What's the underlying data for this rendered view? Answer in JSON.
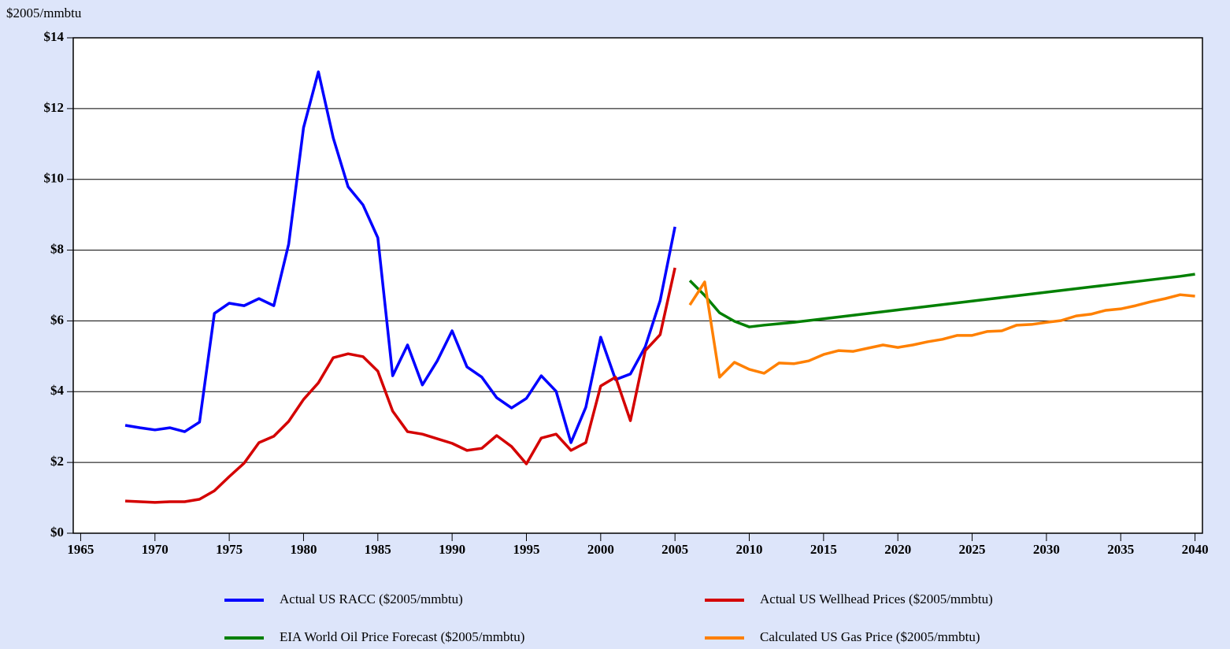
{
  "chart_data": {
    "type": "line",
    "y_label": "$2005/mmbtu",
    "xlim": [
      1964.5,
      2040.5
    ],
    "xticks": [
      1965,
      1970,
      1975,
      1980,
      1985,
      1990,
      1995,
      2000,
      2005,
      2010,
      2015,
      2020,
      2025,
      2030,
      2035,
      2040
    ],
    "ylim": [
      0,
      14
    ],
    "yticks": [
      {
        "value": 0,
        "label": "$0"
      },
      {
        "value": 2,
        "label": "$2"
      },
      {
        "value": 4,
        "label": "$4"
      },
      {
        "value": 6,
        "label": "$6"
      },
      {
        "value": 8,
        "label": "$8"
      },
      {
        "value": 10,
        "label": "$10"
      },
      {
        "value": 12,
        "label": "$12"
      },
      {
        "value": 14,
        "label": "$14"
      }
    ],
    "grid": true,
    "legend": "bottom",
    "series": [
      {
        "name": "Actual US RACC ($2005/mmbtu)",
        "color": "#0000ff",
        "x": [
          1968,
          1969,
          1970,
          1971,
          1972,
          1973,
          1974,
          1975,
          1976,
          1977,
          1978,
          1979,
          1980,
          1981,
          1982,
          1983,
          1984,
          1985,
          1986,
          1987,
          1988,
          1989,
          1990,
          1991,
          1992,
          1993,
          1994,
          1995,
          1996,
          1997,
          1998,
          1999,
          2000,
          2001,
          2002,
          2003,
          2004,
          2005
        ],
        "values": [
          3.05,
          2.98,
          2.92,
          2.98,
          2.87,
          3.14,
          6.21,
          6.5,
          6.43,
          6.63,
          6.43,
          8.17,
          11.46,
          13.04,
          11.17,
          9.79,
          9.28,
          8.35,
          4.45,
          5.32,
          4.19,
          4.87,
          5.72,
          4.7,
          4.41,
          3.83,
          3.54,
          3.81,
          4.45,
          4.01,
          2.56,
          3.56,
          5.54,
          4.34,
          4.5,
          5.27,
          6.57,
          8.66
        ]
      },
      {
        "name": "Actual US Wellhead Prices ($2005/mmbtu)",
        "color": "#d40000",
        "x": [
          1968,
          1969,
          1970,
          1971,
          1972,
          1973,
          1974,
          1975,
          1976,
          1977,
          1978,
          1979,
          1980,
          1981,
          1982,
          1983,
          1984,
          1985,
          1986,
          1987,
          1988,
          1989,
          1990,
          1991,
          1992,
          1993,
          1994,
          1995,
          1996,
          1997,
          1998,
          1999,
          2000,
          2001,
          2002,
          2003,
          2004,
          2005
        ],
        "values": [
          0.91,
          0.89,
          0.87,
          0.89,
          0.89,
          0.96,
          1.2,
          1.6,
          1.98,
          2.56,
          2.74,
          3.16,
          3.78,
          4.25,
          4.96,
          5.07,
          4.99,
          4.58,
          3.45,
          2.87,
          2.8,
          2.67,
          2.54,
          2.34,
          2.4,
          2.76,
          2.45,
          1.96,
          2.69,
          2.8,
          2.34,
          2.56,
          4.16,
          4.41,
          3.18,
          5.16,
          5.61,
          7.5
        ]
      },
      {
        "name": "EIA World Oil Price Forecast ($2005/mmbtu)",
        "color": "#008000",
        "x": [
          2006,
          2007,
          2008,
          2009,
          2010,
          2011,
          2012,
          2013,
          2014,
          2015,
          2016,
          2017,
          2018,
          2019,
          2020,
          2021,
          2022,
          2023,
          2024,
          2025,
          2026,
          2027,
          2028,
          2029,
          2030,
          2031,
          2032,
          2033,
          2034,
          2035,
          2036,
          2037,
          2038,
          2039,
          2040
        ],
        "values": [
          7.14,
          6.72,
          6.23,
          5.99,
          5.83,
          5.88,
          5.92,
          5.96,
          6.01,
          6.06,
          6.11,
          6.16,
          6.21,
          6.26,
          6.31,
          6.36,
          6.41,
          6.46,
          6.51,
          6.56,
          6.61,
          6.66,
          6.71,
          6.76,
          6.81,
          6.86,
          6.91,
          6.96,
          7.01,
          7.06,
          7.11,
          7.16,
          7.21,
          7.26,
          7.32
        ]
      },
      {
        "name": "Calculated US Gas Price ($2005/mmbtu)",
        "color": "#ff8000",
        "x": [
          2006,
          2007,
          2008,
          2009,
          2010,
          2011,
          2012,
          2013,
          2014,
          2015,
          2016,
          2017,
          2018,
          2019,
          2020,
          2021,
          2022,
          2023,
          2024,
          2025,
          2026,
          2027,
          2028,
          2029,
          2030,
          2031,
          2032,
          2033,
          2034,
          2035,
          2036,
          2037,
          2038,
          2039,
          2040
        ],
        "values": [
          6.45,
          7.1,
          4.41,
          4.83,
          4.63,
          4.52,
          4.81,
          4.79,
          4.87,
          5.05,
          5.16,
          5.14,
          5.23,
          5.32,
          5.25,
          5.32,
          5.41,
          5.48,
          5.59,
          5.59,
          5.7,
          5.72,
          5.88,
          5.9,
          5.96,
          6.01,
          6.14,
          6.19,
          6.3,
          6.34,
          6.43,
          6.54,
          6.63,
          6.74,
          6.7
        ]
      }
    ]
  }
}
